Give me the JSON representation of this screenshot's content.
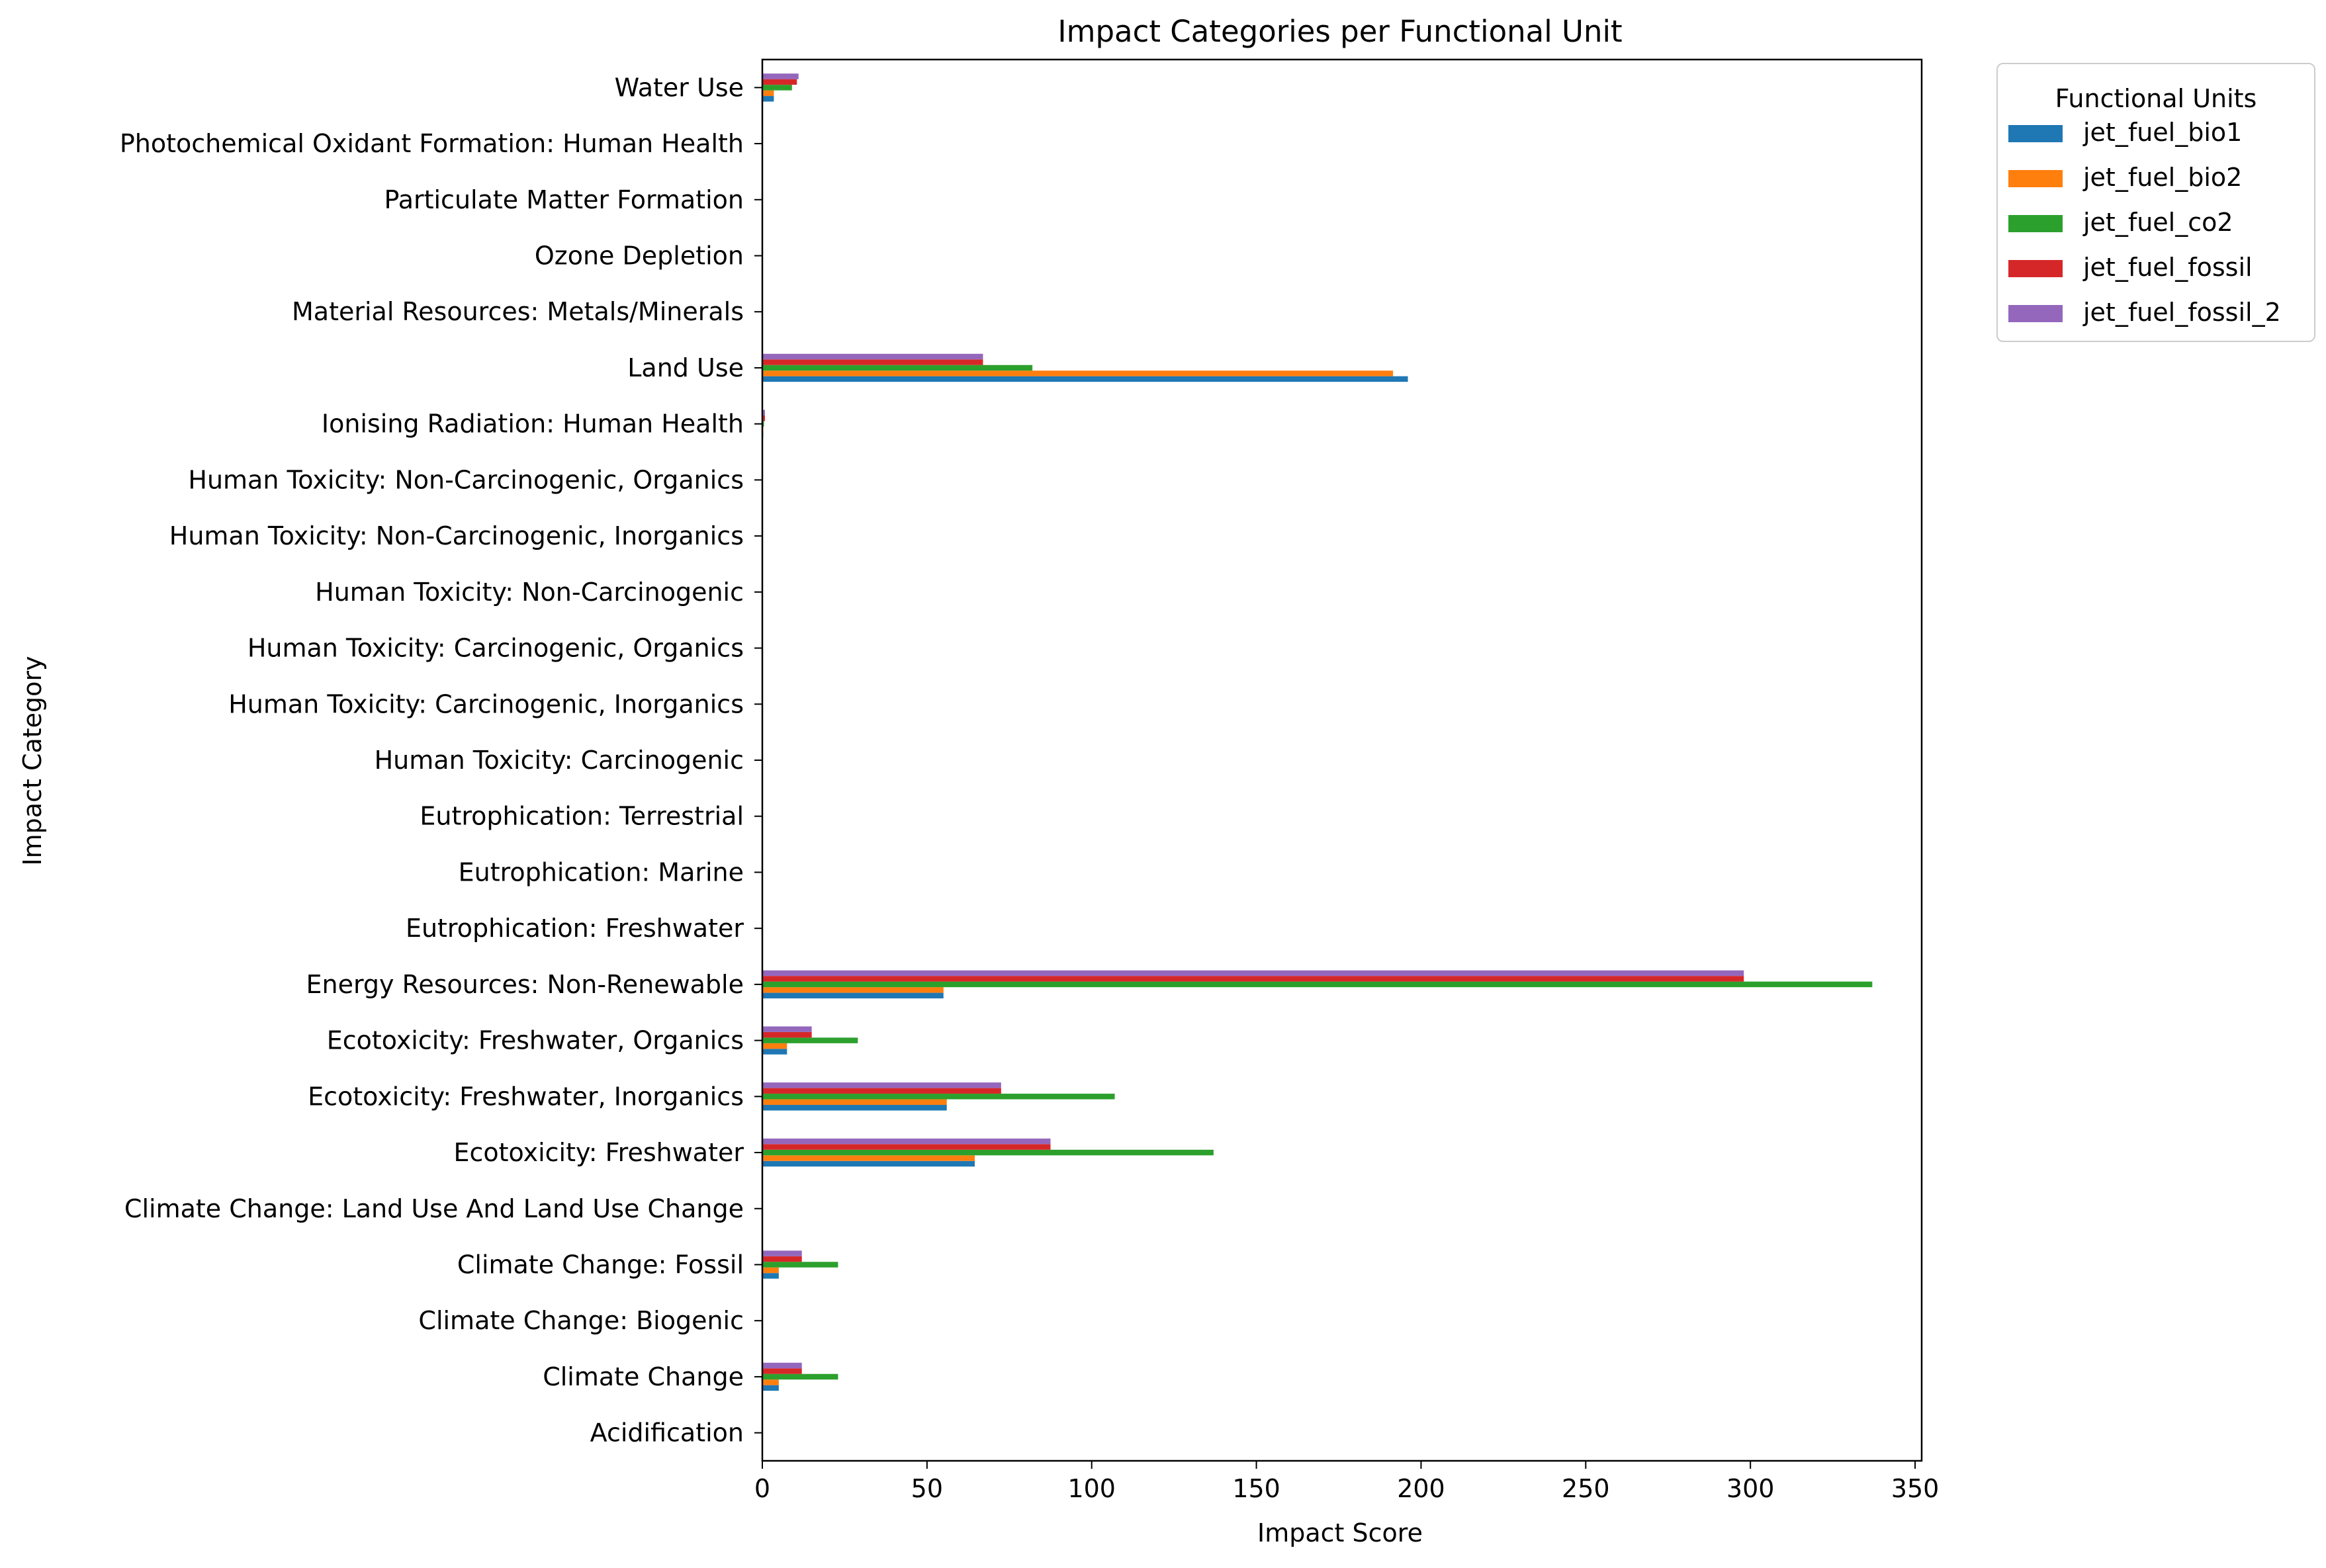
{
  "chart_data": {
    "type": "bar",
    "orientation": "horizontal",
    "title": "Impact Categories per Functional Unit",
    "xlabel": "Impact Score",
    "ylabel": "Impact Category",
    "xlim": [
      0,
      352
    ],
    "xticks": [
      0,
      50,
      100,
      150,
      200,
      250,
      300,
      350
    ],
    "grid": false,
    "legend": {
      "title": "Functional Units",
      "placement": "outside-top-right"
    },
    "categories": [
      "Acidification",
      "Climate Change",
      "Climate Change: Biogenic",
      "Climate Change: Fossil",
      "Climate Change: Land Use And Land Use Change",
      "Ecotoxicity: Freshwater",
      "Ecotoxicity: Freshwater, Inorganics",
      "Ecotoxicity: Freshwater, Organics",
      "Energy Resources: Non-Renewable",
      "Eutrophication: Freshwater",
      "Eutrophication: Marine",
      "Eutrophication: Terrestrial",
      "Human Toxicity: Carcinogenic",
      "Human Toxicity: Carcinogenic, Inorganics",
      "Human Toxicity: Carcinogenic, Organics",
      "Human Toxicity: Non-Carcinogenic",
      "Human Toxicity: Non-Carcinogenic, Inorganics",
      "Human Toxicity: Non-Carcinogenic, Organics",
      "Ionising Radiation: Human Health",
      "Land Use",
      "Material Resources: Metals/Minerals",
      "Ozone Depletion",
      "Particulate Matter Formation",
      "Photochemical Oxidant Formation: Human Health",
      "Water Use"
    ],
    "series": [
      {
        "name": "jet_fuel_bio1",
        "color": "#1f77b4",
        "values": [
          0.01,
          5.0,
          0,
          5.0,
          0,
          64.5,
          56.0,
          7.5,
          55.0,
          0,
          0,
          0,
          0,
          0,
          0,
          0,
          0,
          0,
          0.3,
          196.0,
          0,
          0,
          0,
          0,
          3.5
        ]
      },
      {
        "name": "jet_fuel_bio2",
        "color": "#ff7f0e",
        "values": [
          0.01,
          5.0,
          0,
          5.0,
          0,
          64.5,
          56.0,
          7.5,
          55.0,
          0,
          0,
          0,
          0,
          0,
          0,
          0,
          0,
          0,
          0.3,
          191.5,
          0,
          0,
          0,
          0,
          3.5
        ]
      },
      {
        "name": "jet_fuel_co2",
        "color": "#2ca02c",
        "values": [
          0.02,
          23.0,
          0,
          23.0,
          0,
          137.0,
          107.0,
          29.0,
          337.0,
          0,
          0,
          0,
          0,
          0,
          0,
          0,
          0,
          0,
          0.5,
          82.0,
          0,
          0,
          0,
          0,
          9.0
        ]
      },
      {
        "name": "jet_fuel_fossil",
        "color": "#d62728",
        "values": [
          0.02,
          12.0,
          0,
          12.0,
          0,
          87.5,
          72.5,
          15.0,
          298.0,
          0,
          0,
          0,
          0,
          0,
          0,
          0,
          0,
          0,
          0.8,
          67.0,
          0,
          0,
          0,
          0,
          10.5
        ]
      },
      {
        "name": "jet_fuel_fossil_2",
        "color": "#9467bd",
        "values": [
          0.02,
          12.0,
          0,
          12.0,
          0,
          87.5,
          72.5,
          15.0,
          298.0,
          0,
          0,
          0,
          0,
          0,
          0,
          0,
          0,
          0,
          0.8,
          67.0,
          0,
          0,
          0,
          0,
          11.0
        ]
      }
    ]
  }
}
